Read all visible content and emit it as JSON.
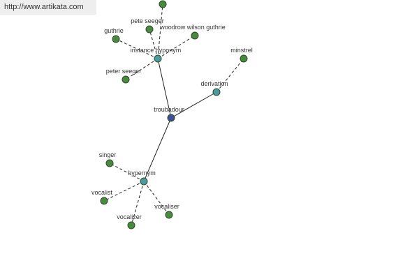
{
  "header": {
    "url": "http://www.artikata.com"
  },
  "nodes": [
    {
      "label": "troubadour"
    },
    {
      "label": "instance hyponym"
    },
    {
      "label": "derivation"
    },
    {
      "label": "hypernym"
    },
    {
      "label": "pete seeger"
    },
    {
      "label": "woodrow wilson guthrie"
    },
    {
      "label": "guthrie"
    },
    {
      "label": "peter seeger"
    },
    {
      "label": "minstrel"
    },
    {
      "label": "singer"
    },
    {
      "label": "vocalist"
    },
    {
      "label": "vocalizer"
    },
    {
      "label": "vocaliser"
    }
  ]
}
